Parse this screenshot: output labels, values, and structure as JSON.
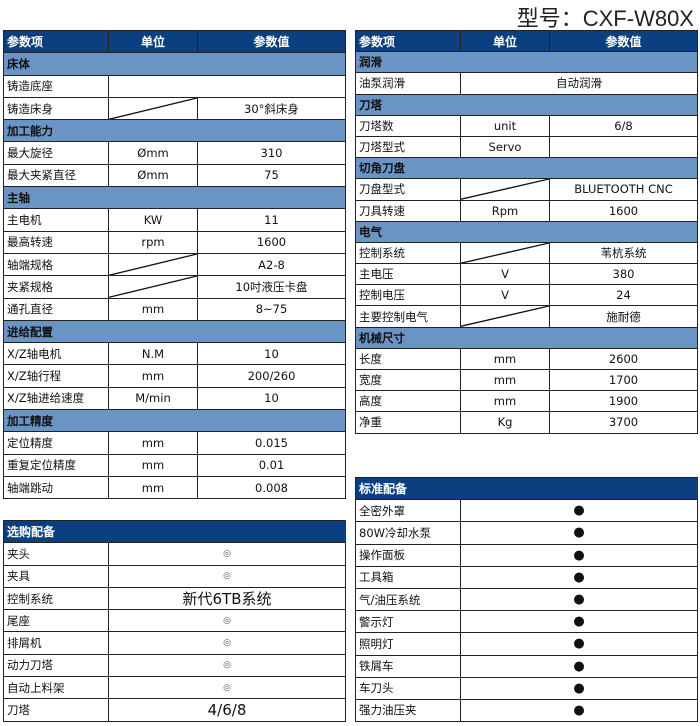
{
  "model_label": "型号：CXF-W80X",
  "colors": {
    "header": "#0b3f80",
    "section": "#6a94c4"
  },
  "headers": {
    "item": "参数项",
    "unit": "单位",
    "value": "参数值"
  },
  "left_table": [
    {
      "section": "床体"
    },
    {
      "item": "铸造底座",
      "merged": true,
      "value": ""
    },
    {
      "item": "铸造床身",
      "diag": true,
      "value": "30°斜床身"
    },
    {
      "section": "加工能力"
    },
    {
      "item": "最大旋径",
      "unit": "Ømm",
      "value": "310"
    },
    {
      "item": "最大夹紧直径",
      "unit": "Ømm",
      "value": "75"
    },
    {
      "section": "主轴"
    },
    {
      "item": "主电机",
      "unit": "KW",
      "value": "11"
    },
    {
      "item": "最高转速",
      "unit": "rpm",
      "value": "1600"
    },
    {
      "item": "轴端规格",
      "diag": true,
      "value": "A2-8"
    },
    {
      "item": "夹紧规格",
      "diag": true,
      "value": "10吋液压卡盘"
    },
    {
      "item": "通孔直径",
      "unit": "mm",
      "value": "8~75"
    },
    {
      "section": "进给配置"
    },
    {
      "item": "X/Z轴电机",
      "unit": "N.M",
      "value": "10"
    },
    {
      "item": "X/Z轴行程",
      "unit": "mm",
      "value": "200/260"
    },
    {
      "item": "X/Z轴进给速度",
      "unit": "M/min",
      "value": "10"
    },
    {
      "section": "加工精度"
    },
    {
      "item": "定位精度",
      "unit": "mm",
      "value": "0.015"
    },
    {
      "item": "重复定位精度",
      "unit": "mm",
      "value": "0.01"
    },
    {
      "item": "轴端跳动",
      "unit": "mm",
      "value": "0.008"
    }
  ],
  "right_table": [
    {
      "section": "润滑"
    },
    {
      "item": "油泵润滑",
      "merged": true,
      "value": "自动润滑"
    },
    {
      "section": "刀塔"
    },
    {
      "item": "刀塔数",
      "unit": "unit",
      "value": "6/8"
    },
    {
      "item": "刀塔型式",
      "unit": "Servo",
      "value": ""
    },
    {
      "section": "切角刀盘"
    },
    {
      "item": "刀盘型式",
      "diag": true,
      "value": "BLUETOOTH CNC"
    },
    {
      "item": "刀具转速",
      "unit": "Rpm",
      "value": "1600"
    },
    {
      "section": "电气"
    },
    {
      "item": "控制系统",
      "diag": true,
      "value": "苇杭系统"
    },
    {
      "item": "主电压",
      "unit": "V",
      "value": "380"
    },
    {
      "item": "控制电压",
      "unit": "V",
      "value": "24"
    },
    {
      "item": "主要控制电气",
      "diag": true,
      "value": "施耐德"
    },
    {
      "section": "机械尺寸"
    },
    {
      "item": "长度",
      "unit": "mm",
      "value": "2600"
    },
    {
      "item": "宽度",
      "unit": "mm",
      "value": "1700"
    },
    {
      "item": "高度",
      "unit": "mm",
      "value": "1900"
    },
    {
      "item": "净重",
      "unit": "Kg",
      "value": "3700"
    }
  ],
  "optional": {
    "title": "选购配备",
    "rows": [
      {
        "item": "夹头",
        "value": "◎",
        "style": "circ"
      },
      {
        "item": "夹具",
        "value": "◎",
        "style": "circ"
      },
      {
        "item": "控制系统",
        "value": "新代6TB系统",
        "style": "big"
      },
      {
        "item": "尾座",
        "value": "◎",
        "style": "circ"
      },
      {
        "item": "排屑机",
        "value": "◎",
        "style": "circ"
      },
      {
        "item": "动力刀塔",
        "value": "◎",
        "style": "circ"
      },
      {
        "item": "自动上料架",
        "value": "◎",
        "style": "circ"
      },
      {
        "item": "刀塔",
        "value": "4/6/8",
        "style": "big"
      }
    ]
  },
  "standard": {
    "title": "标准配备",
    "rows": [
      {
        "item": "全密外罩",
        "value": "●",
        "style": "dot"
      },
      {
        "item": "80W冷却水泵",
        "value": "●",
        "style": "dot"
      },
      {
        "item": "操作面板",
        "value": "●",
        "style": "dot"
      },
      {
        "item": "工具箱",
        "value": "●",
        "style": "dot"
      },
      {
        "item": "气/油压系统",
        "value": "●",
        "style": "dot"
      },
      {
        "item": "警示灯",
        "value": "●",
        "style": "dot"
      },
      {
        "item": "照明灯",
        "value": "●",
        "style": "dot"
      },
      {
        "item": "铁屑车",
        "value": "●",
        "style": "dot"
      },
      {
        "item": "车刀头",
        "value": "●",
        "style": "dot"
      },
      {
        "item": "强力油压夹",
        "value": "●",
        "style": "dot"
      }
    ]
  }
}
